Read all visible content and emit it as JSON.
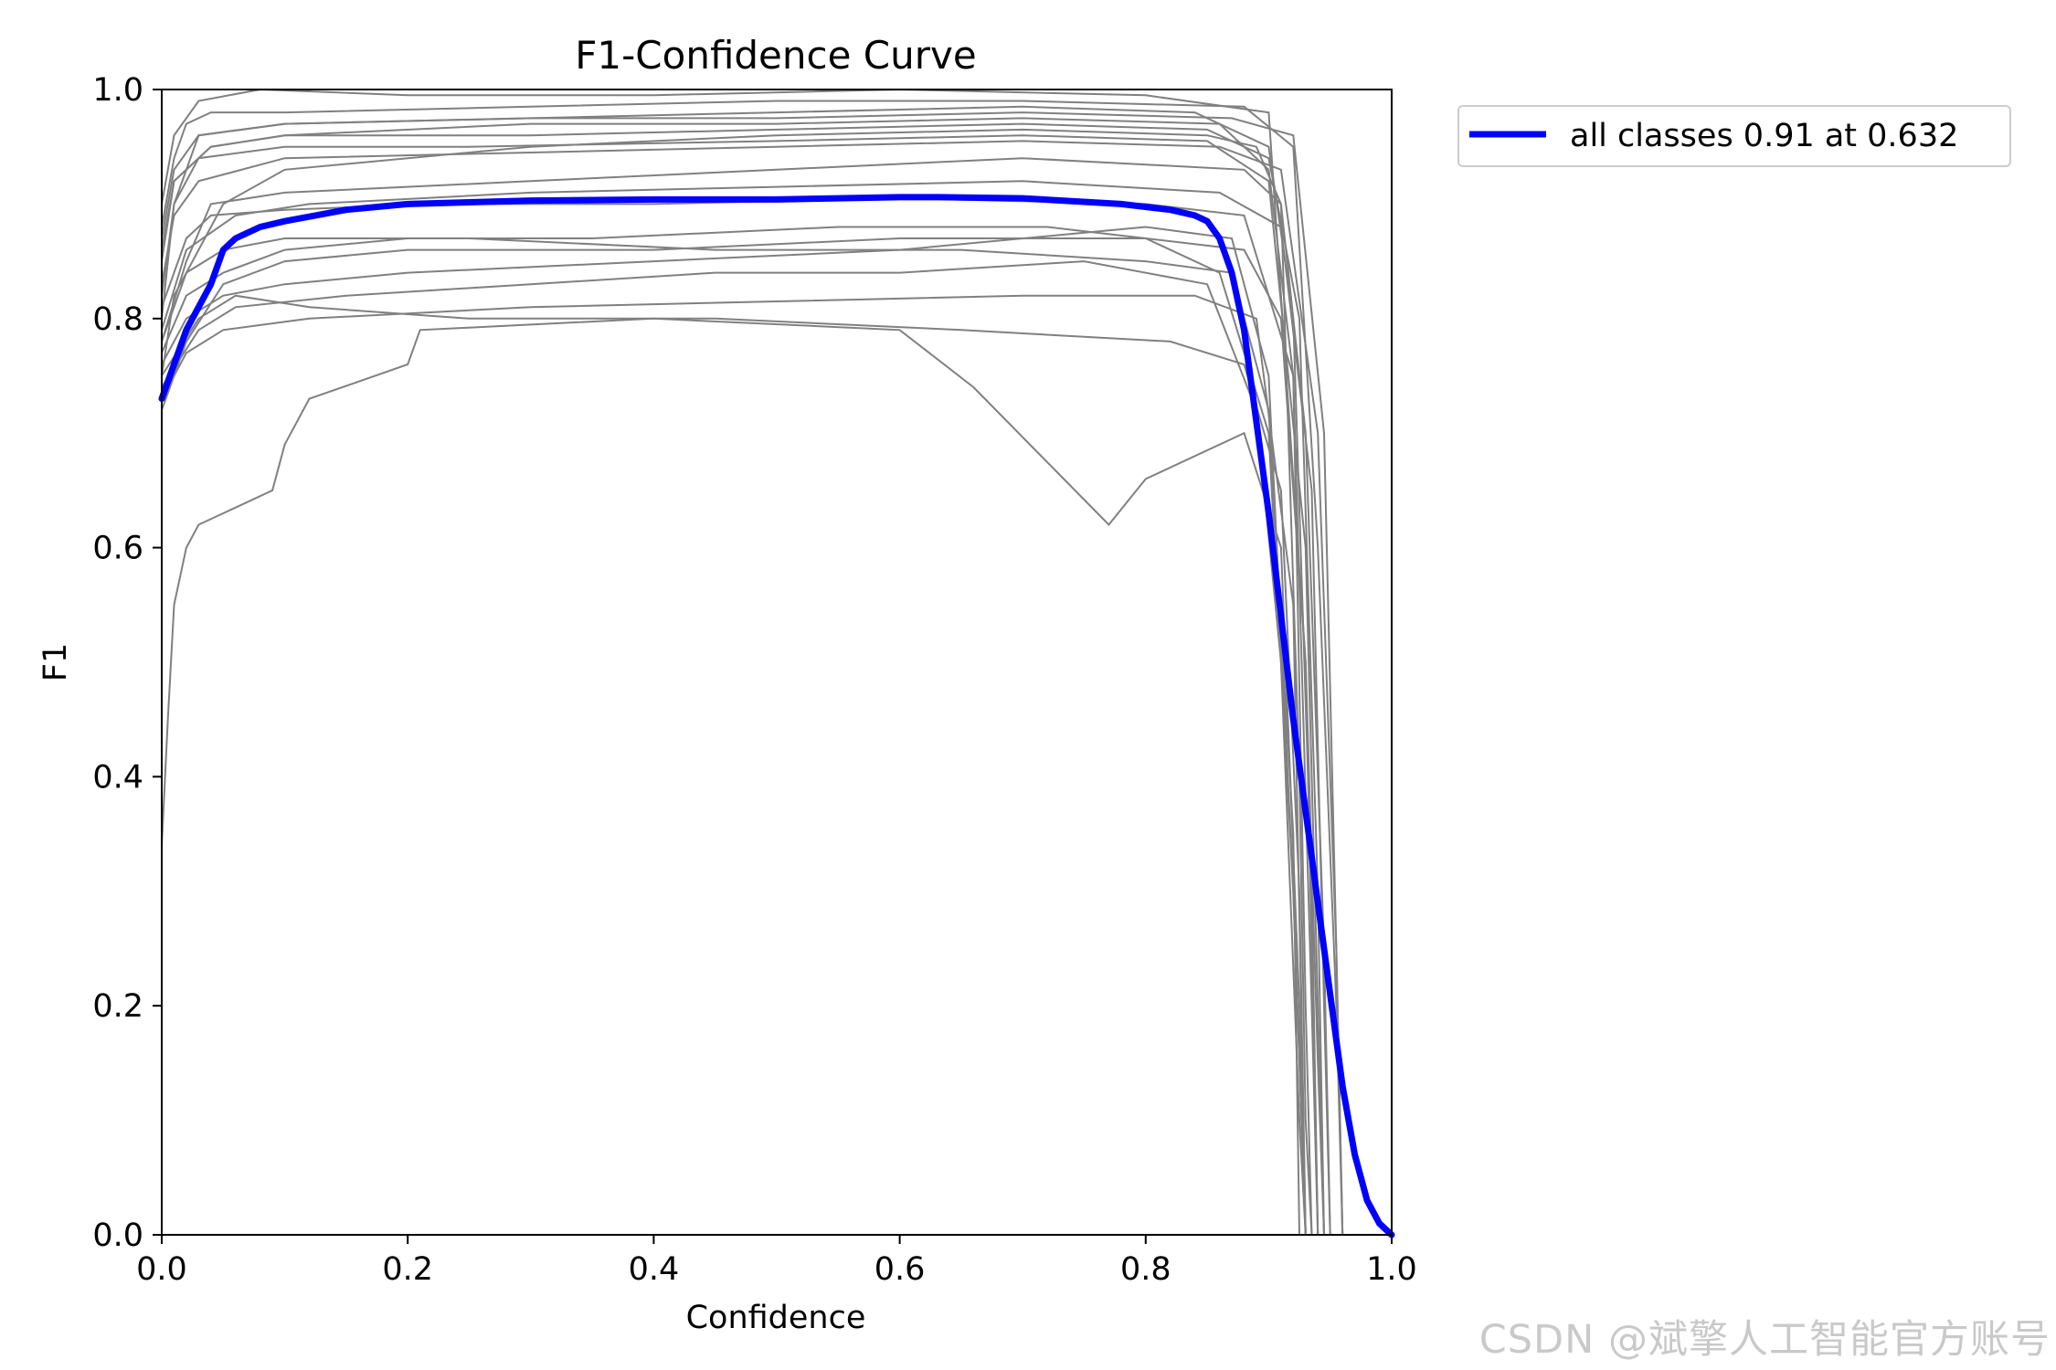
{
  "watermark": "CSDN @斌擎人工智能官方账号",
  "chart_data": {
    "type": "line",
    "title": "F1-Confidence Curve",
    "xlabel": "Confidence",
    "ylabel": "F1",
    "xlim": [
      0.0,
      1.0
    ],
    "ylim": [
      0.0,
      1.0
    ],
    "x_ticks": [
      "0.0",
      "0.2",
      "0.4",
      "0.6",
      "0.8",
      "1.0"
    ],
    "y_ticks": [
      "0.0",
      "0.2",
      "0.4",
      "0.6",
      "0.8",
      "1.0"
    ],
    "grid": false,
    "legend_position": "outside-top-right",
    "colors": {
      "per_class": "#808080",
      "all_classes": "#0000ff"
    },
    "series": [
      {
        "name": "all classes 0.91 at 0.632",
        "color": "#0000ff",
        "x": [
          0.0,
          0.02,
          0.04,
          0.05,
          0.06,
          0.08,
          0.1,
          0.15,
          0.2,
          0.3,
          0.4,
          0.5,
          0.6,
          0.632,
          0.7,
          0.78,
          0.82,
          0.84,
          0.85,
          0.86,
          0.87,
          0.88,
          0.89,
          0.9,
          0.91,
          0.92,
          0.93,
          0.94,
          0.95,
          0.96,
          0.97,
          0.98,
          0.99,
          1.0
        ],
        "y": [
          0.73,
          0.79,
          0.83,
          0.86,
          0.87,
          0.88,
          0.885,
          0.895,
          0.9,
          0.903,
          0.904,
          0.904,
          0.906,
          0.906,
          0.905,
          0.9,
          0.895,
          0.89,
          0.885,
          0.87,
          0.84,
          0.79,
          0.71,
          0.63,
          0.54,
          0.45,
          0.37,
          0.29,
          0.21,
          0.13,
          0.07,
          0.03,
          0.01,
          0.0
        ]
      }
    ],
    "class_curves": [
      {
        "x": [
          0.0,
          0.01,
          0.05,
          0.1,
          0.3,
          0.5,
          0.7,
          0.85,
          0.89,
          0.91,
          0.925,
          0.93,
          0.935
        ],
        "y": [
          0.75,
          0.82,
          0.9,
          0.93,
          0.95,
          0.96,
          0.965,
          0.96,
          0.95,
          0.9,
          0.4,
          0.1,
          0.0
        ]
      },
      {
        "x": [
          0.0,
          0.01,
          0.03,
          0.1,
          0.3,
          0.5,
          0.7,
          0.84,
          0.9,
          0.92,
          0.935,
          0.94
        ],
        "y": [
          0.8,
          0.9,
          0.96,
          0.97,
          0.975,
          0.98,
          0.985,
          0.98,
          0.95,
          0.8,
          0.3,
          0.0
        ]
      },
      {
        "x": [
          0.0,
          0.02,
          0.05,
          0.1,
          0.2,
          0.4,
          0.6,
          0.8,
          0.88,
          0.91,
          0.93,
          0.94,
          0.945
        ],
        "y": [
          0.72,
          0.78,
          0.83,
          0.85,
          0.86,
          0.86,
          0.87,
          0.87,
          0.86,
          0.8,
          0.5,
          0.15,
          0.0
        ]
      },
      {
        "x": [
          0.0,
          0.01,
          0.04,
          0.1,
          0.3,
          0.5,
          0.7,
          0.86,
          0.9,
          0.92,
          0.93,
          0.935
        ],
        "y": [
          0.85,
          0.92,
          0.95,
          0.96,
          0.97,
          0.97,
          0.975,
          0.97,
          0.93,
          0.75,
          0.2,
          0.0
        ]
      },
      {
        "x": [
          0.0,
          0.005,
          0.01,
          0.02,
          0.03,
          0.05,
          0.09,
          0.1,
          0.12,
          0.2,
          0.21,
          0.4,
          0.6,
          0.66,
          0.77,
          0.8,
          0.88,
          0.91,
          0.925,
          0.93
        ],
        "y": [
          0.34,
          0.45,
          0.55,
          0.6,
          0.62,
          0.63,
          0.65,
          0.69,
          0.73,
          0.76,
          0.79,
          0.8,
          0.79,
          0.74,
          0.62,
          0.66,
          0.7,
          0.6,
          0.2,
          0.0
        ]
      },
      {
        "x": [
          0.0,
          0.02,
          0.04,
          0.1,
          0.3,
          0.5,
          0.7,
          0.88,
          0.91,
          0.93,
          0.945,
          0.95
        ],
        "y": [
          0.78,
          0.85,
          0.9,
          0.91,
          0.92,
          0.93,
          0.94,
          0.93,
          0.9,
          0.7,
          0.25,
          0.0
        ]
      },
      {
        "x": [
          0.0,
          0.01,
          0.03,
          0.1,
          0.25,
          0.5,
          0.7,
          0.85,
          0.9,
          0.93,
          0.94,
          0.945
        ],
        "y": [
          0.82,
          0.9,
          0.94,
          0.95,
          0.95,
          0.955,
          0.96,
          0.955,
          0.92,
          0.6,
          0.2,
          0.0
        ]
      },
      {
        "x": [
          0.0,
          0.02,
          0.05,
          0.1,
          0.2,
          0.4,
          0.6,
          0.8,
          0.87,
          0.9,
          0.92,
          0.93
        ],
        "y": [
          0.76,
          0.8,
          0.82,
          0.83,
          0.84,
          0.85,
          0.86,
          0.88,
          0.87,
          0.75,
          0.3,
          0.0
        ]
      },
      {
        "x": [
          0.0,
          0.01,
          0.02,
          0.04,
          0.1,
          0.3,
          0.5,
          0.7,
          0.88,
          0.92,
          0.94,
          0.955,
          0.96
        ],
        "y": [
          0.88,
          0.94,
          0.97,
          0.98,
          0.98,
          0.985,
          0.99,
          0.99,
          0.985,
          0.95,
          0.6,
          0.2,
          0.0
        ]
      },
      {
        "x": [
          0.0,
          0.03,
          0.06,
          0.15,
          0.3,
          0.45,
          0.6,
          0.75,
          0.85,
          0.89,
          0.91,
          0.925,
          0.93
        ],
        "y": [
          0.74,
          0.79,
          0.81,
          0.82,
          0.83,
          0.84,
          0.84,
          0.85,
          0.83,
          0.72,
          0.5,
          0.1,
          0.0
        ]
      },
      {
        "x": [
          0.0,
          0.02,
          0.06,
          0.12,
          0.3,
          0.5,
          0.7,
          0.86,
          0.91,
          0.935,
          0.945,
          0.95
        ],
        "y": [
          0.79,
          0.86,
          0.89,
          0.9,
          0.91,
          0.915,
          0.92,
          0.91,
          0.88,
          0.65,
          0.2,
          0.0
        ]
      },
      {
        "x": [
          0.0,
          0.01,
          0.03,
          0.08,
          0.2,
          0.4,
          0.6,
          0.8,
          0.9,
          0.93,
          0.94
        ],
        "y": [
          0.9,
          0.96,
          0.99,
          1.0,
          0.995,
          0.995,
          1.0,
          0.995,
          0.98,
          0.5,
          0.0
        ]
      },
      {
        "x": [
          0.0,
          0.02,
          0.05,
          0.1,
          0.2,
          0.35,
          0.55,
          0.72,
          0.8,
          0.86,
          0.9,
          0.92,
          0.93
        ],
        "y": [
          0.77,
          0.82,
          0.84,
          0.86,
          0.87,
          0.87,
          0.88,
          0.88,
          0.87,
          0.84,
          0.7,
          0.3,
          0.0
        ]
      },
      {
        "x": [
          0.0,
          0.01,
          0.04,
          0.1,
          0.3,
          0.5,
          0.7,
          0.85,
          0.9,
          0.925,
          0.94,
          0.945
        ],
        "y": [
          0.86,
          0.92,
          0.95,
          0.96,
          0.96,
          0.965,
          0.97,
          0.965,
          0.94,
          0.8,
          0.3,
          0.0
        ]
      },
      {
        "x": [
          0.0,
          0.03,
          0.06,
          0.12,
          0.25,
          0.45,
          0.65,
          0.82,
          0.88,
          0.91,
          0.925,
          0.93
        ],
        "y": [
          0.75,
          0.8,
          0.82,
          0.81,
          0.8,
          0.8,
          0.79,
          0.78,
          0.76,
          0.65,
          0.3,
          0.0
        ]
      },
      {
        "x": [
          0.0,
          0.01,
          0.03,
          0.1,
          0.3,
          0.5,
          0.7,
          0.86,
          0.91,
          0.94,
          0.955,
          0.96
        ],
        "y": [
          0.83,
          0.89,
          0.92,
          0.94,
          0.945,
          0.95,
          0.955,
          0.95,
          0.93,
          0.7,
          0.25,
          0.0
        ]
      },
      {
        "x": [
          0.0,
          0.02,
          0.04,
          0.1,
          0.22,
          0.4,
          0.6,
          0.8,
          0.88,
          0.92,
          0.935,
          0.94
        ],
        "y": [
          0.81,
          0.87,
          0.89,
          0.895,
          0.9,
          0.9,
          0.905,
          0.9,
          0.89,
          0.75,
          0.2,
          0.0
        ]
      },
      {
        "x": [
          0.0,
          0.02,
          0.05,
          0.12,
          0.3,
          0.5,
          0.7,
          0.84,
          0.89,
          0.92,
          0.93
        ],
        "y": [
          0.73,
          0.77,
          0.79,
          0.8,
          0.81,
          0.815,
          0.82,
          0.82,
          0.8,
          0.55,
          0.0
        ]
      },
      {
        "x": [
          0.0,
          0.01,
          0.03,
          0.1,
          0.3,
          0.5,
          0.7,
          0.87,
          0.92,
          0.945,
          0.955,
          0.96
        ],
        "y": [
          0.87,
          0.93,
          0.96,
          0.97,
          0.975,
          0.975,
          0.98,
          0.975,
          0.96,
          0.7,
          0.25,
          0.0
        ]
      },
      {
        "x": [
          0.0,
          0.02,
          0.05,
          0.1,
          0.25,
          0.45,
          0.65,
          0.8,
          0.87,
          0.9,
          0.92,
          0.925
        ],
        "y": [
          0.78,
          0.84,
          0.86,
          0.87,
          0.87,
          0.86,
          0.86,
          0.85,
          0.84,
          0.72,
          0.35,
          0.0
        ]
      }
    ]
  }
}
